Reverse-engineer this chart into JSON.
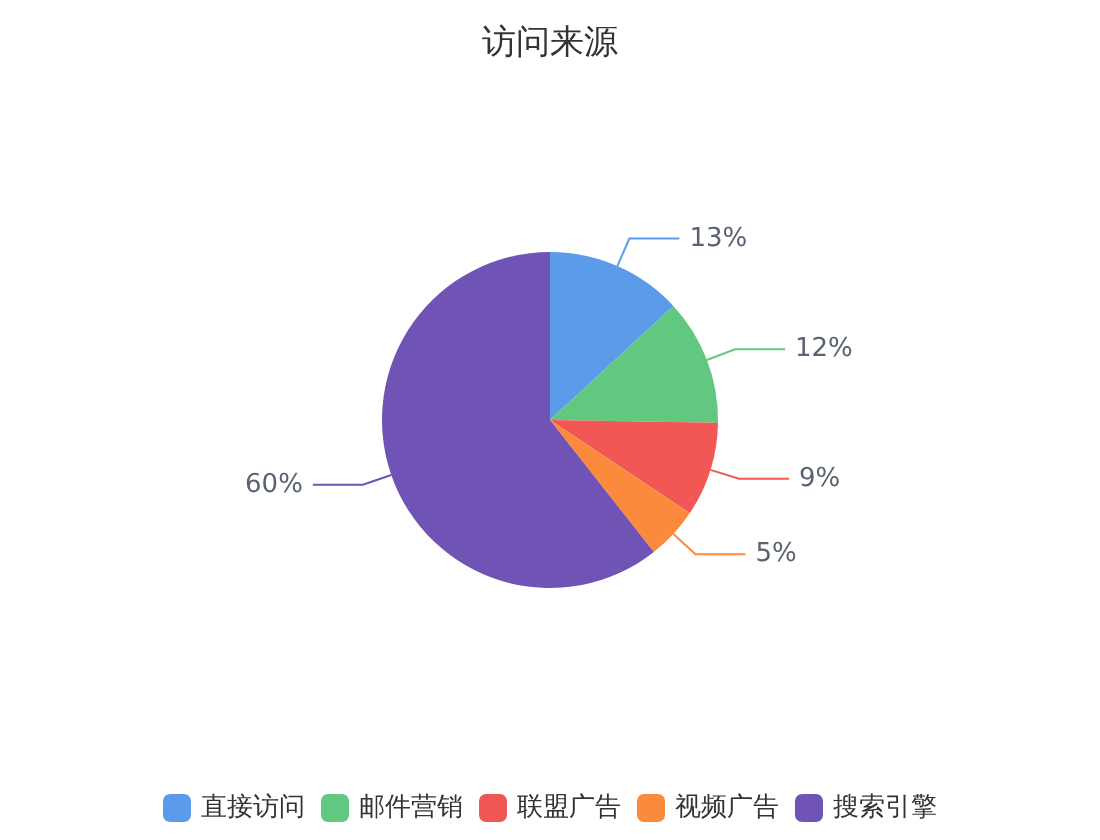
{
  "chart_data": {
    "type": "pie",
    "title": "访问来源",
    "categories": [
      "直接访问",
      "邮件营销",
      "联盟广告",
      "视频广告",
      "搜索引擎"
    ],
    "values": [
      13,
      12,
      9,
      5,
      60
    ],
    "value_labels": [
      "13%",
      "12%",
      "9%",
      "5%",
      "60%"
    ],
    "colors": [
      "#5b9bea",
      "#62c87f",
      "#f15755",
      "#fc8a3d",
      "#6f54b5"
    ],
    "legend": "bottom"
  }
}
